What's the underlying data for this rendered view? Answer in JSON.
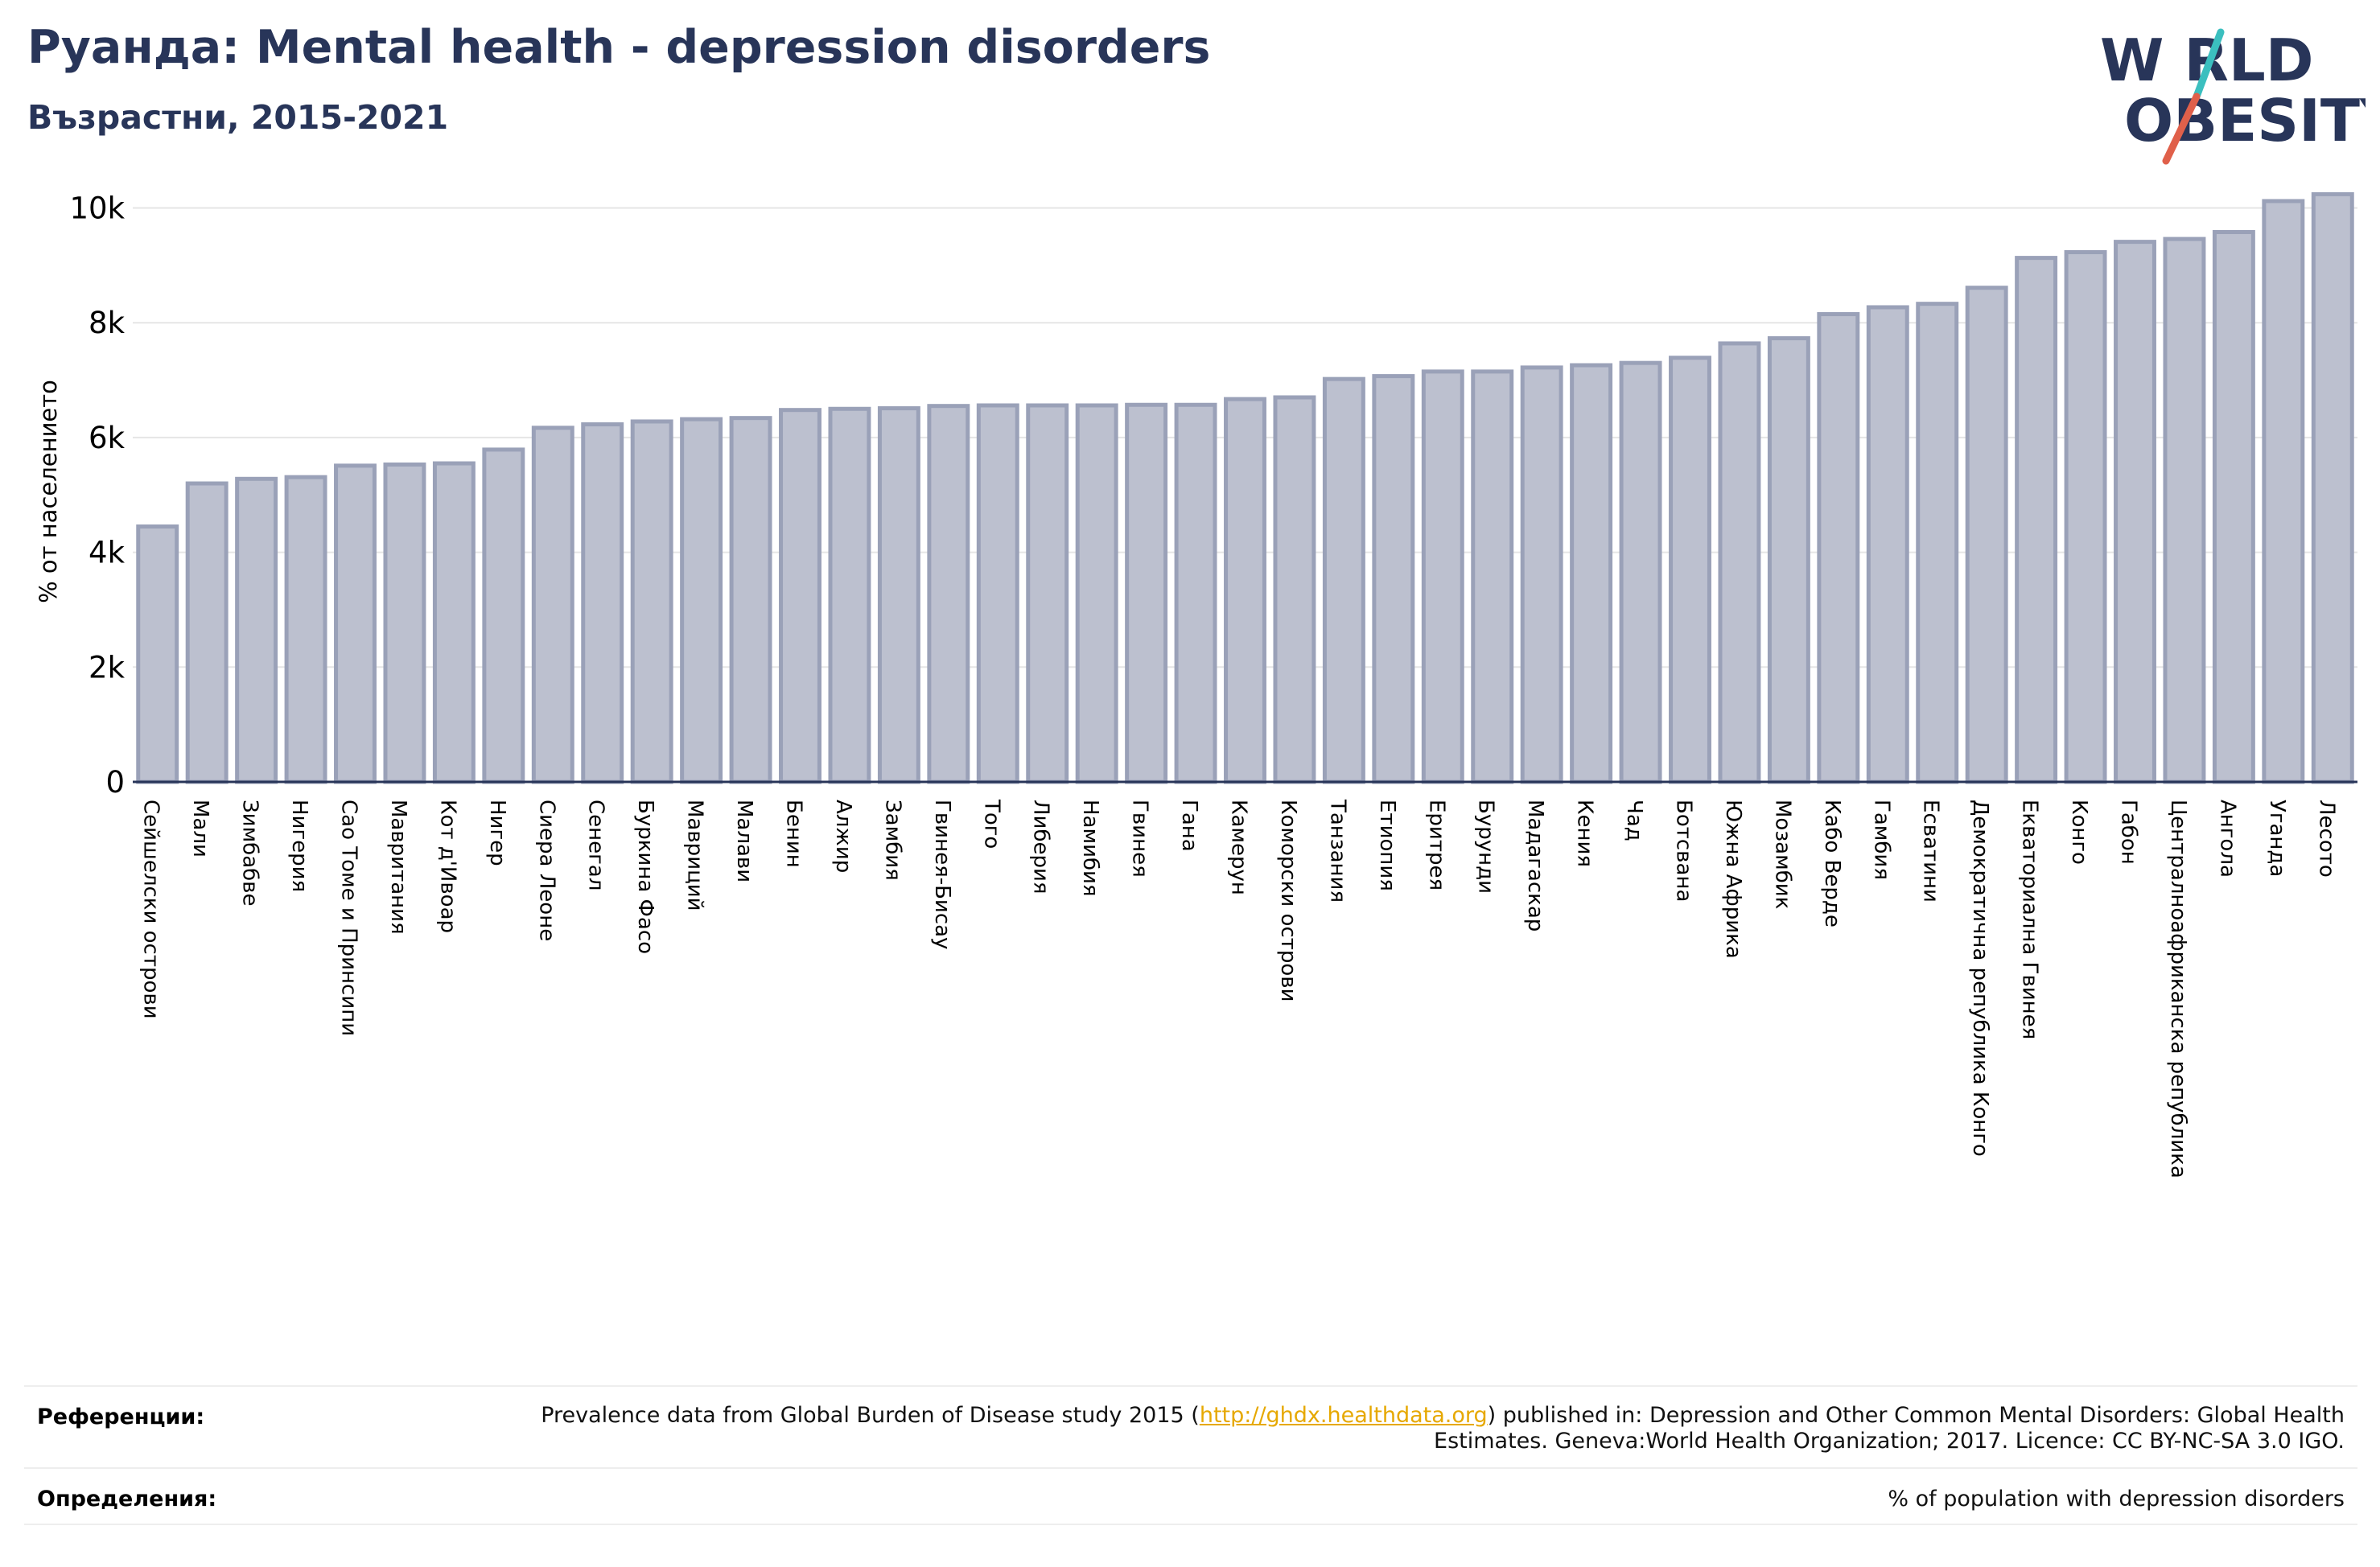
{
  "header": {
    "title": "Руанда: Mental health - depression disorders",
    "subtitle": "Възрастни, 2015-2021"
  },
  "logo": {
    "line1": "W RLD",
    "line2": "OBESITY",
    "text": "WORLD OBESITY",
    "colors": {
      "text": "#283559",
      "slash_teal": "#3bbfbf",
      "slash_red": "#e0604a"
    }
  },
  "colors": {
    "title": "#283559",
    "bar_fill": "#bcc0cf",
    "bar_stroke": "#9aa1b8",
    "axis": "#283559",
    "grid": "#e6e6e6",
    "link": "#e6a800"
  },
  "chart_data": {
    "type": "bar",
    "title": "",
    "xlabel": "",
    "ylabel": "% от населението",
    "ylim": [
      0,
      10400
    ],
    "yticks": [
      0,
      2000,
      4000,
      6000,
      8000,
      10000
    ],
    "ytick_labels": [
      "0",
      "2k",
      "4k",
      "6k",
      "8k",
      "10k"
    ],
    "grid": true,
    "categories": [
      "Сейшелски острови",
      "Мали",
      "Зимбабве",
      "Нигерия",
      "Сао Томе и Принсипи",
      "Мавритания",
      "Кот д'Ивоар",
      "Нигер",
      "Сиера Леоне",
      "Сенегал",
      "Буркина Фасо",
      "Мавриций",
      "Малави",
      "Бенин",
      "Алжир",
      "Замбия",
      "Гвинея-Бисау",
      "Того",
      "Либерия",
      "Намибия",
      "Гвинея",
      "Гана",
      "Камерун",
      "Коморски острови",
      "Танзания",
      "Етиопия",
      "Еритрея",
      "Бурунди",
      "Мадагаскар",
      "Кения",
      "Чад",
      "Ботсвана",
      "Южна Африка",
      "Мозамбик",
      "Кабо Верде",
      "Гамбия",
      "Есватини",
      "Демократична република Конго",
      "Екваториална Гвинея",
      "Конго",
      "Габон",
      "Централноафриканска република",
      "Ангола",
      "Уганда",
      "Лесото"
    ],
    "values": [
      4450,
      5200,
      5280,
      5310,
      5510,
      5530,
      5550,
      5790,
      6170,
      6230,
      6280,
      6320,
      6340,
      6480,
      6500,
      6510,
      6550,
      6560,
      6560,
      6560,
      6570,
      6570,
      6670,
      6700,
      7020,
      7070,
      7150,
      7150,
      7220,
      7260,
      7300,
      7390,
      7640,
      7730,
      8150,
      8270,
      8330,
      8610,
      9130,
      9230,
      9410,
      9460,
      9580,
      10120,
      10240
    ]
  },
  "references": {
    "label": "Референции:",
    "text_before": "Prevalence data from Global Burden of Disease study 2015 (",
    "link": "http://ghdx.healthdata.org",
    "text_after": ") published in: Depression and Other Common Mental Disorders: Global Health Estimates. Geneva:World Health Organization; 2017. Licence: CC BY-NC-SA 3.0 IGO."
  },
  "definitions": {
    "label": "Определения:",
    "text": "% of population with depression disorders"
  }
}
